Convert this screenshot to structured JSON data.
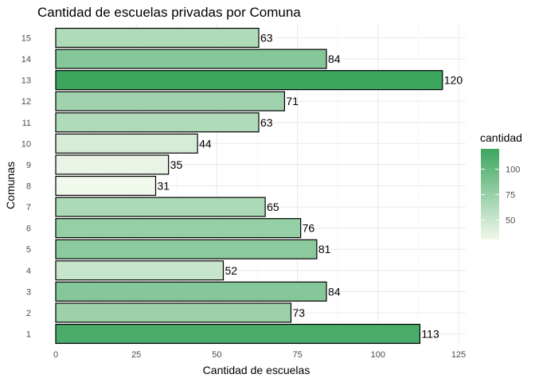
{
  "chart_data": {
    "type": "bar",
    "orientation": "horizontal",
    "title": "Cantidad de escuelas privadas por Comuna",
    "xlabel": "Cantidad de escuelas",
    "ylabel": "Comunas",
    "categories": [
      "1",
      "2",
      "3",
      "4",
      "5",
      "6",
      "7",
      "8",
      "9",
      "10",
      "11",
      "12",
      "13",
      "14",
      "15"
    ],
    "values": [
      113,
      73,
      84,
      52,
      81,
      76,
      65,
      31,
      35,
      44,
      63,
      71,
      120,
      84,
      63
    ],
    "xlim": [
      0,
      125
    ],
    "x_ticks": [
      0,
      25,
      50,
      75,
      100,
      125
    ],
    "grid": true,
    "legend": {
      "title": "cantidad",
      "position": "right",
      "ticks": [
        50,
        75,
        100
      ],
      "range": [
        31,
        120
      ],
      "color_low": "#f1f8ec",
      "color_high": "#3ca65f"
    }
  }
}
